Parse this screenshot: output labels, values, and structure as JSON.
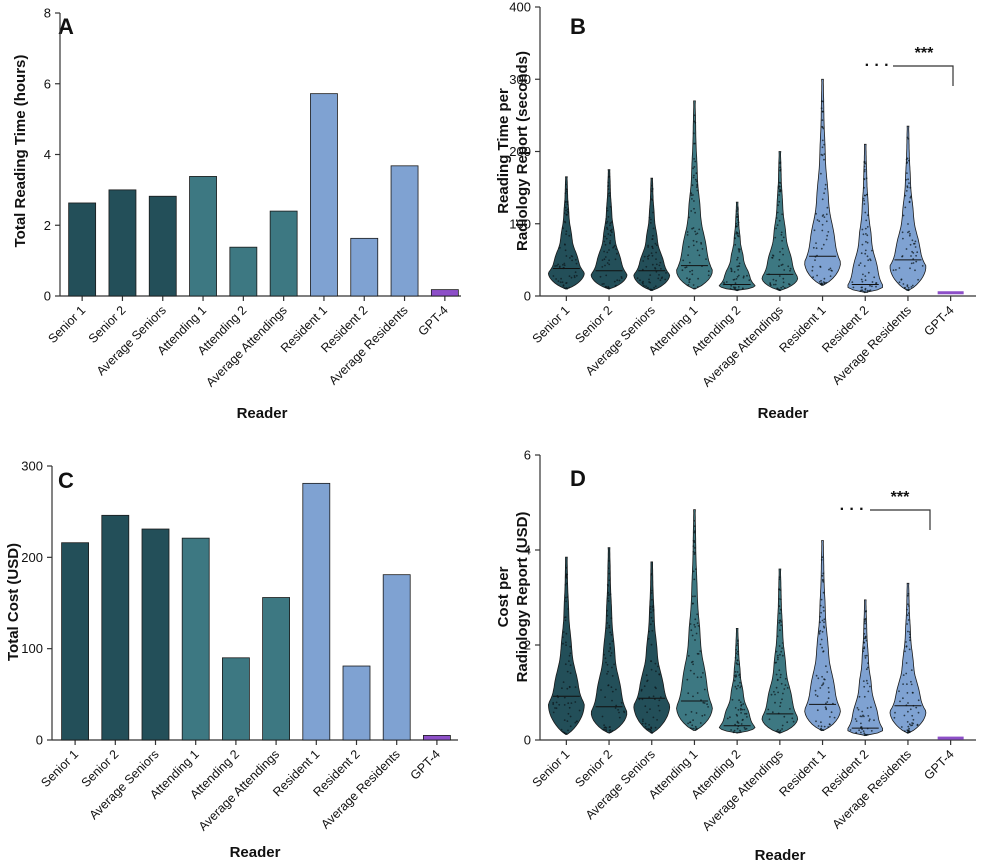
{
  "colors": {
    "senior": "#234f59",
    "attending": "#3d7882",
    "resident": "#7fa2d2",
    "gpt": "#8d4fc8",
    "outline": "#1b2f36"
  },
  "chart_data": [
    {
      "panel": "A",
      "type": "bar",
      "categories": [
        "Senior 1",
        "Senior 2",
        "Average Seniors",
        "Attending 1",
        "Attending 2",
        "Average Attendings",
        "Resident 1",
        "Resident 2",
        "Average Residents",
        "GPT-4"
      ],
      "groups": [
        "senior",
        "senior",
        "senior",
        "attending",
        "attending",
        "attending",
        "resident",
        "resident",
        "resident",
        "gpt"
      ],
      "values": [
        2.63,
        3.0,
        2.82,
        3.38,
        1.38,
        2.4,
        5.72,
        1.63,
        3.68,
        0.18
      ],
      "xlabel": "Reader",
      "ylabel": "Total Reading Time (hours)",
      "ylim": [
        0,
        8
      ],
      "yticks": [
        0,
        2,
        4,
        6,
        8
      ]
    },
    {
      "panel": "B",
      "type": "violin",
      "categories": [
        "Senior 1",
        "Senior 2",
        "Average Seniors",
        "Attending 1",
        "Attending 2",
        "Average Attendings",
        "Resident 1",
        "Resident 2",
        "Average Residents",
        "GPT-4"
      ],
      "groups": [
        "senior",
        "senior",
        "senior",
        "attending",
        "attending",
        "attending",
        "resident",
        "resident",
        "resident",
        "gpt"
      ],
      "min": [
        10,
        10,
        8,
        10,
        8,
        8,
        15,
        5,
        8,
        4
      ],
      "max": [
        165,
        175,
        163,
        270,
        130,
        200,
        300,
        210,
        235,
        5
      ],
      "median": [
        38,
        35,
        35,
        42,
        16,
        30,
        55,
        16,
        50,
        4.5
      ],
      "xlabel": "Reader",
      "ylabel_line1": "Reading Time per",
      "ylabel_line2": "Radiology Report (seconds)",
      "ylim": [
        0,
        400
      ],
      "yticks": [
        0,
        100,
        200,
        300,
        400
      ],
      "significance": {
        "dots": "· · ·",
        "label": "***"
      }
    },
    {
      "panel": "C",
      "type": "bar",
      "categories": [
        "Senior 1",
        "Senior 2",
        "Average Seniors",
        "Attending 1",
        "Attending 2",
        "Average Attendings",
        "Resident 1",
        "Resident 2",
        "Average Residents",
        "GPT-4"
      ],
      "groups": [
        "senior",
        "senior",
        "senior",
        "attending",
        "attending",
        "attending",
        "resident",
        "resident",
        "resident",
        "gpt"
      ],
      "values": [
        216,
        246,
        231,
        221,
        90,
        156,
        281,
        81,
        181,
        5
      ],
      "xlabel": "Reader",
      "ylabel": "Total Cost  (USD)",
      "ylim": [
        0,
        300
      ],
      "yticks": [
        0,
        100,
        200,
        300
      ]
    },
    {
      "panel": "D",
      "type": "violin",
      "categories": [
        "Senior 1",
        "Senior 2",
        "Average Seniors",
        "Attending 1",
        "Attending 2",
        "Average Attendings",
        "Resident 1",
        "Resident 2",
        "Average Residents",
        "GPT-4"
      ],
      "groups": [
        "senior",
        "senior",
        "senior",
        "attending",
        "attending",
        "attending",
        "resident",
        "resident",
        "resident",
        "gpt"
      ],
      "min": [
        0.12,
        0.15,
        0.15,
        0.2,
        0.15,
        0.15,
        0.2,
        0.1,
        0.15,
        0.03
      ],
      "max": [
        3.85,
        4.05,
        3.75,
        4.85,
        2.35,
        3.6,
        4.2,
        2.95,
        3.3,
        0.05
      ],
      "median": [
        0.92,
        0.7,
        0.88,
        0.82,
        0.3,
        0.55,
        0.75,
        0.25,
        0.72,
        0.04
      ],
      "xlabel": "Reader",
      "ylabel_line1": "Cost per",
      "ylabel_line2": "Radiology Report (USD)",
      "ylim": [
        0,
        6
      ],
      "yticks": [
        0,
        2,
        4,
        6
      ],
      "significance": {
        "dots": "· · ·",
        "label": "***"
      }
    }
  ]
}
